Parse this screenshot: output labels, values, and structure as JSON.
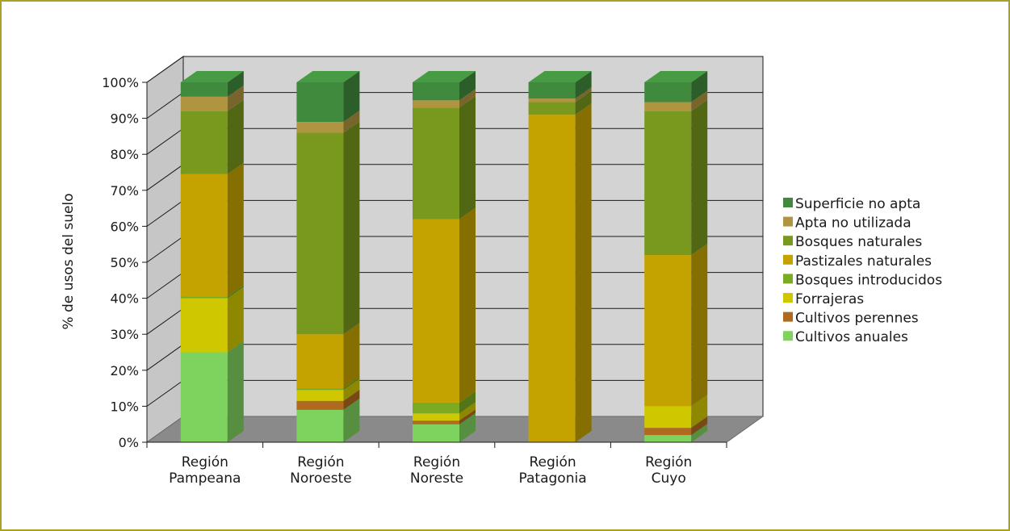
{
  "chart_data": {
    "type": "bar",
    "stacked": true,
    "three_d": true,
    "ylabel": "% de usos del suelo",
    "xlabel": "",
    "ylim": [
      0,
      100
    ],
    "yticks": [
      "0%",
      "10%",
      "20%",
      "30%",
      "40%",
      "50%",
      "60%",
      "70%",
      "80%",
      "90%",
      "100%"
    ],
    "grid": true,
    "legend_position": "right",
    "categories": [
      [
        "Región",
        "Pampeana"
      ],
      [
        "Región",
        "Noroeste"
      ],
      [
        "Región",
        "Noreste"
      ],
      [
        "Región",
        "Patagonia"
      ],
      [
        "Región",
        "Cuyo"
      ]
    ],
    "series": [
      {
        "name": "Cultivos anuales",
        "color": "#7ed35e",
        "values": [
          25,
          9,
          5,
          0,
          2
        ]
      },
      {
        "name": "Cultivos perennes",
        "color": "#b06a1f",
        "values": [
          0,
          2.5,
          1,
          0,
          2
        ]
      },
      {
        "name": "Forrajeras",
        "color": "#cfc800",
        "values": [
          15,
          3,
          2,
          0,
          6
        ]
      },
      {
        "name": "Bosques introducidos",
        "color": "#7aab22",
        "values": [
          0.5,
          0.5,
          3,
          0,
          0
        ]
      },
      {
        "name": "Pastizales naturales",
        "color": "#c4a300",
        "values": [
          34,
          15,
          51,
          91,
          42
        ]
      },
      {
        "name": "Bosques naturales",
        "color": "#78981e",
        "values": [
          17.5,
          56,
          31,
          3.5,
          40
        ]
      },
      {
        "name": "Apta no utilizada",
        "color": "#b09540",
        "values": [
          4,
          3,
          2,
          1,
          2.5
        ]
      },
      {
        "name": "Superficie no apta",
        "color": "#3f8a3c",
        "values": [
          4,
          11,
          5,
          4.5,
          5.5
        ]
      }
    ],
    "legend_order": [
      "Superficie no apta",
      "Apta no utilizada",
      "Bosques naturales",
      "Pastizales naturales",
      "Bosques introducidos",
      "Forrajeras",
      "Cultivos perennes",
      "Cultivos anuales"
    ]
  }
}
